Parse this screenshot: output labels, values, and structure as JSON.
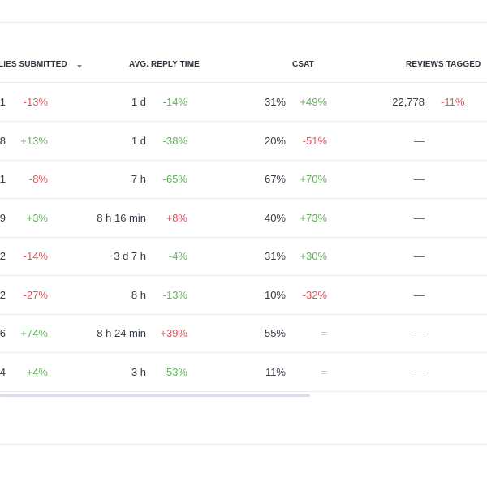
{
  "table": {
    "columns": {
      "replies_submitted": "LIES SUBMITTED",
      "avg_reply_time": "AVG. REPLY TIME",
      "csat": "CSAT",
      "reviews_tagged": "REVIEWS TAGGED"
    },
    "rows": [
      {
        "submitted": "1",
        "submitted_change": "-13%",
        "submitted_trend": "neg",
        "reply_time": "1 d",
        "reply_change": "-14%",
        "reply_trend": "pos",
        "csat": "31%",
        "csat_change": "+49%",
        "csat_trend": "pos",
        "reviews": "22,778",
        "reviews_change": "-11%",
        "reviews_trend": "neg"
      },
      {
        "submitted": "8",
        "submitted_change": "+13%",
        "submitted_trend": "pos",
        "reply_time": "1 d",
        "reply_change": "-38%",
        "reply_trend": "pos",
        "csat": "20%",
        "csat_change": "-51%",
        "csat_trend": "neg",
        "reviews": "—",
        "reviews_change": "",
        "reviews_trend": "neu"
      },
      {
        "submitted": "1",
        "submitted_change": "-8%",
        "submitted_trend": "neg",
        "reply_time": "7 h",
        "reply_change": "-65%",
        "reply_trend": "pos",
        "csat": "67%",
        "csat_change": "+70%",
        "csat_trend": "pos",
        "reviews": "—",
        "reviews_change": "",
        "reviews_trend": "neu"
      },
      {
        "submitted": "9",
        "submitted_change": "+3%",
        "submitted_trend": "pos",
        "reply_time": "8 h 16 min",
        "reply_change": "+8%",
        "reply_trend": "neg",
        "csat": "40%",
        "csat_change": "+73%",
        "csat_trend": "pos",
        "reviews": "—",
        "reviews_change": "",
        "reviews_trend": "neu"
      },
      {
        "submitted": "2",
        "submitted_change": "-14%",
        "submitted_trend": "neg",
        "reply_time": "3 d 7 h",
        "reply_change": "-4%",
        "reply_trend": "pos",
        "csat": "31%",
        "csat_change": "+30%",
        "csat_trend": "pos",
        "reviews": "—",
        "reviews_change": "",
        "reviews_trend": "neu"
      },
      {
        "submitted": "2",
        "submitted_change": "-27%",
        "submitted_trend": "neg",
        "reply_time": "8 h",
        "reply_change": "-13%",
        "reply_trend": "pos",
        "csat": "10%",
        "csat_change": "-32%",
        "csat_trend": "neg",
        "reviews": "—",
        "reviews_change": "",
        "reviews_trend": "neu"
      },
      {
        "submitted": "6",
        "submitted_change": "+74%",
        "submitted_trend": "pos",
        "reply_time": "8 h 24 min",
        "reply_change": "+39%",
        "reply_trend": "neg",
        "csat": "55%",
        "csat_change": "=",
        "csat_trend": "neu",
        "reviews": "—",
        "reviews_change": "",
        "reviews_trend": "neu"
      },
      {
        "submitted": "4",
        "submitted_change": "+4%",
        "submitted_trend": "pos",
        "reply_time": "3 h",
        "reply_change": "-53%",
        "reply_trend": "pos",
        "csat": "11%",
        "csat_change": "=",
        "csat_trend": "neu",
        "reviews": "—",
        "reviews_change": "",
        "reviews_trend": "neu"
      }
    ]
  },
  "colors": {
    "positive": "#66b15e",
    "negative": "#e0525c",
    "neutral": "#c7cbd1",
    "text": "#333a44",
    "header_text": "#2d3440"
  },
  "icons": {
    "sort": "caret-down-icon"
  }
}
